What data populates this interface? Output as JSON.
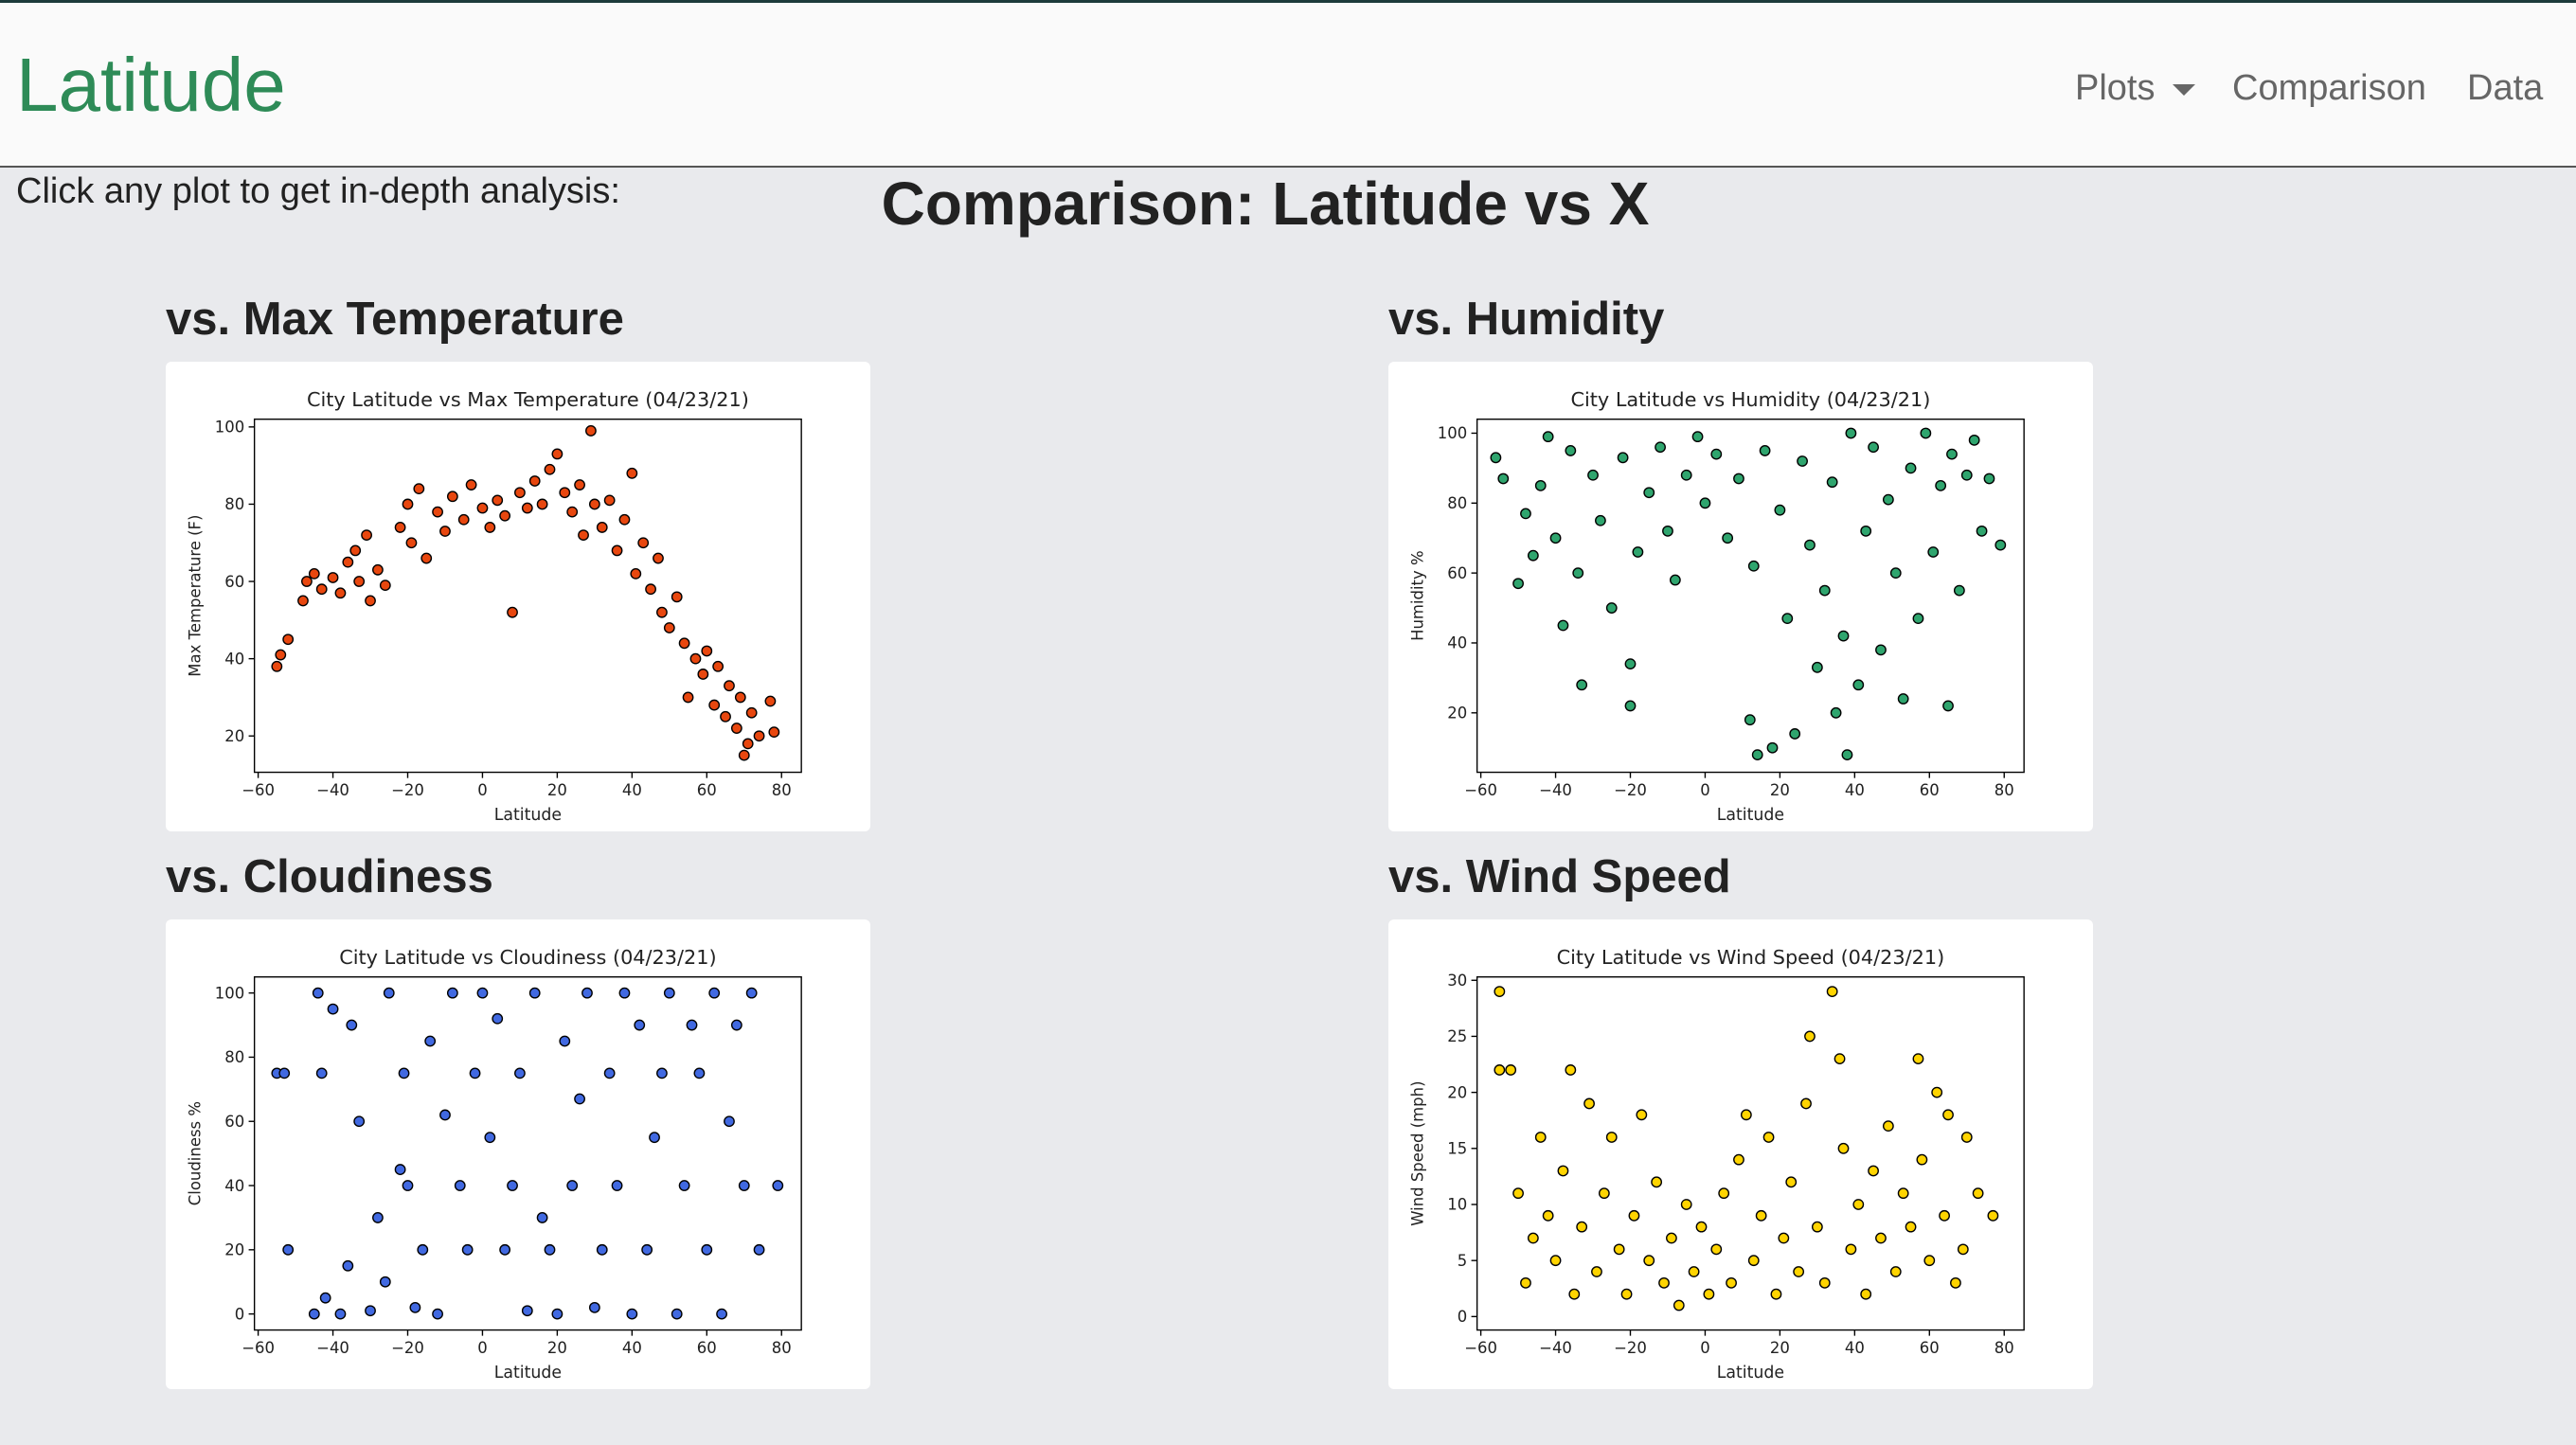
{
  "navbar": {
    "brand": "Latitude",
    "links": [
      "Plots",
      "Comparison",
      "Data"
    ]
  },
  "intro": "Click any plot to get in-depth analysis:",
  "heading": "Comparison: Latitude vs X",
  "panels": [
    "vs. Max Temperature",
    "vs. Humidity",
    "vs. Cloudiness",
    "vs. Wind Speed"
  ],
  "chart_data": [
    {
      "type": "scatter",
      "title": "City Latitude vs Max Temperature (04/23/21)",
      "x_label": "Latitude",
      "y_label": "Max Temperature (F)",
      "color": "#e8470f",
      "x": [
        -55,
        -54,
        -52,
        -48,
        -47,
        -45,
        -43,
        -40,
        -38,
        -36,
        -34,
        -33,
        -31,
        -30,
        -28,
        -26,
        -22,
        -20,
        -19,
        -17,
        -15,
        -12,
        -10,
        -8,
        -5,
        -3,
        0,
        2,
        4,
        6,
        8,
        10,
        12,
        14,
        16,
        18,
        20,
        22,
        24,
        26,
        27,
        29,
        30,
        32,
        34,
        36,
        38,
        40,
        41,
        43,
        45,
        47,
        48,
        50,
        52,
        54,
        55,
        57,
        59,
        60,
        62,
        63,
        65,
        66,
        68,
        69,
        70,
        71,
        72,
        74,
        77,
        78
      ],
      "values": [
        38,
        41,
        45,
        55,
        60,
        62,
        58,
        61,
        57,
        65,
        68,
        60,
        72,
        55,
        63,
        59,
        74,
        80,
        70,
        84,
        66,
        78,
        73,
        82,
        76,
        85,
        79,
        74,
        81,
        77,
        52,
        83,
        79,
        86,
        80,
        89,
        93,
        83,
        78,
        85,
        72,
        99,
        80,
        74,
        81,
        68,
        76,
        88,
        62,
        70,
        58,
        66,
        52,
        48,
        56,
        44,
        30,
        40,
        36,
        42,
        28,
        38,
        25,
        33,
        22,
        30,
        15,
        18,
        26,
        20,
        29,
        21
      ],
      "xlim": [
        -61,
        85.3
      ],
      "ylim": [
        10.6,
        102
      ],
      "xticks": [
        {
          "value": -60,
          "label": "−60"
        },
        {
          "value": -40,
          "label": "−40"
        },
        {
          "value": -20,
          "label": "−20"
        },
        0,
        20,
        40,
        60,
        80
      ],
      "yticks": [
        20,
        40,
        60,
        80,
        100
      ]
    },
    {
      "type": "scatter",
      "title": "City Latitude vs Humidity (04/23/21)",
      "x_label": "Latitude",
      "y_label": "Humidity %",
      "color": "#2fa56e",
      "x": [
        -56,
        -54,
        -50,
        -48,
        -46,
        -44,
        -42,
        -40,
        -38,
        -36,
        -34,
        -33,
        -30,
        -28,
        -25,
        -22,
        -20,
        -20,
        -18,
        -15,
        -12,
        -10,
        -8,
        -5,
        -2,
        0,
        3,
        6,
        9,
        12,
        13,
        14,
        16,
        18,
        20,
        22,
        24,
        26,
        28,
        30,
        32,
        34,
        35,
        37,
        38,
        39,
        41,
        43,
        45,
        47,
        49,
        51,
        53,
        55,
        57,
        59,
        61,
        63,
        65,
        66,
        68,
        70,
        72,
        74,
        76,
        79
      ],
      "values": [
        93,
        87,
        57,
        77,
        65,
        85,
        99,
        70,
        45,
        95,
        60,
        28,
        88,
        75,
        50,
        93,
        34,
        22,
        66,
        83,
        96,
        72,
        58,
        88,
        99,
        80,
        94,
        70,
        87,
        18,
        62,
        8,
        95,
        10,
        78,
        47,
        14,
        92,
        68,
        33,
        55,
        86,
        20,
        42,
        8,
        100,
        28,
        72,
        96,
        38,
        81,
        60,
        24,
        90,
        47,
        100,
        66,
        85,
        22,
        94,
        55,
        88,
        98,
        72,
        87,
        68
      ],
      "xlim": [
        -61,
        85.3
      ],
      "ylim": [
        3,
        104
      ],
      "xticks": [
        {
          "value": -60,
          "label": "−60"
        },
        {
          "value": -40,
          "label": "−40"
        },
        {
          "value": -20,
          "label": "−20"
        },
        0,
        20,
        40,
        60,
        80
      ],
      "yticks": [
        20,
        40,
        60,
        80,
        100
      ]
    },
    {
      "type": "scatter",
      "title": "City Latitude vs Cloudiness (04/23/21)",
      "x_label": "Latitude",
      "y_label": "Cloudiness %",
      "color": "#4169e1",
      "x": [
        -55,
        -53,
        -52,
        -45,
        -44,
        -43,
        -42,
        -40,
        -38,
        -36,
        -35,
        -33,
        -30,
        -28,
        -26,
        -25,
        -22,
        -21,
        -20,
        -18,
        -16,
        -14,
        -12,
        -10,
        -8,
        -6,
        -4,
        -2,
        0,
        2,
        4,
        6,
        8,
        10,
        12,
        14,
        16,
        18,
        20,
        22,
        24,
        26,
        28,
        30,
        32,
        34,
        36,
        38,
        40,
        42,
        44,
        46,
        48,
        50,
        52,
        54,
        56,
        58,
        60,
        62,
        64,
        66,
        68,
        70,
        72,
        74,
        79
      ],
      "values": [
        75,
        75,
        20,
        0,
        100,
        75,
        5,
        95,
        0,
        15,
        90,
        60,
        1,
        30,
        10,
        100,
        45,
        75,
        40,
        2,
        20,
        85,
        0,
        62,
        100,
        40,
        20,
        75,
        100,
        55,
        92,
        20,
        40,
        75,
        1,
        100,
        30,
        20,
        0,
        85,
        40,
        67,
        100,
        2,
        20,
        75,
        40,
        100,
        0,
        90,
        20,
        55,
        75,
        100,
        0,
        40,
        90,
        75,
        20,
        100,
        0,
        60,
        90,
        40,
        100,
        20,
        40
      ],
      "xlim": [
        -61,
        85.3
      ],
      "ylim": [
        -5,
        105
      ],
      "xticks": [
        {
          "value": -60,
          "label": "−60"
        },
        {
          "value": -40,
          "label": "−40"
        },
        {
          "value": -20,
          "label": "−20"
        },
        0,
        20,
        40,
        60,
        80
      ],
      "yticks": [
        0,
        20,
        40,
        60,
        80,
        100
      ]
    },
    {
      "type": "scatter",
      "title": "City Latitude vs Wind Speed (04/23/21)",
      "x_label": "Latitude",
      "y_label": "Wind Speed (mph)",
      "color": "#ffd400",
      "x": [
        -55,
        -55,
        -52,
        -50,
        -48,
        -46,
        -44,
        -42,
        -40,
        -38,
        -36,
        -35,
        -33,
        -31,
        -29,
        -27,
        -25,
        -23,
        -21,
        -19,
        -17,
        -15,
        -13,
        -11,
        -9,
        -7,
        -5,
        -3,
        -1,
        1,
        3,
        5,
        7,
        9,
        11,
        13,
        15,
        17,
        19,
        21,
        23,
        25,
        27,
        28,
        30,
        32,
        34,
        36,
        37,
        39,
        41,
        43,
        45,
        47,
        49,
        51,
        53,
        55,
        57,
        58,
        60,
        62,
        64,
        65,
        67,
        69,
        70,
        73,
        77
      ],
      "values": [
        29,
        22,
        22,
        11,
        3,
        7,
        16,
        9,
        5,
        13,
        22,
        2,
        8,
        19,
        4,
        11,
        16,
        6,
        2,
        9,
        18,
        5,
        12,
        3,
        7,
        1,
        10,
        4,
        8,
        2,
        6,
        11,
        3,
        14,
        18,
        5,
        9,
        16,
        2,
        7,
        12,
        4,
        19,
        25,
        8,
        3,
        29,
        23,
        15,
        6,
        10,
        2,
        13,
        7,
        17,
        4,
        11,
        8,
        23,
        14,
        5,
        20,
        9,
        18,
        3,
        6,
        16,
        11,
        9
      ],
      "xlim": [
        -61,
        85.3
      ],
      "ylim": [
        -1.2,
        30.3
      ],
      "xticks": [
        {
          "value": -60,
          "label": "−60"
        },
        {
          "value": -40,
          "label": "−40"
        },
        {
          "value": -20,
          "label": "−20"
        },
        0,
        20,
        40,
        60,
        80
      ],
      "yticks": [
        0,
        5,
        10,
        15,
        20,
        25,
        30
      ]
    }
  ]
}
